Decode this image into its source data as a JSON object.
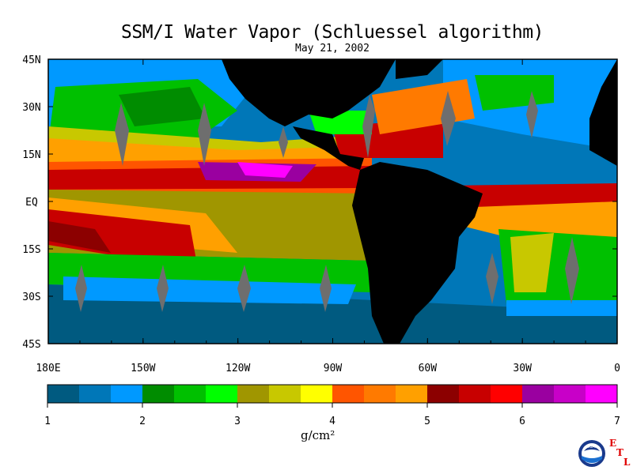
{
  "title": "SSM/I Water Vapor (Schluessel algorithm)",
  "date": "May 21, 2002",
  "lat_labels": [
    "45N",
    "30N",
    "15N",
    "EQ",
    "15S",
    "30S",
    "45S"
  ],
  "lat_values": [
    45,
    30,
    15,
    0,
    -15,
    -30,
    -45
  ],
  "lon_labels": [
    "180E",
    "150W",
    "120W",
    "90W",
    "60W",
    "30W",
    "0"
  ],
  "lon_values": [
    -180,
    -150,
    -120,
    -90,
    -60,
    -30,
    0
  ],
  "extent": {
    "lon": [
      -180,
      0
    ],
    "lat": [
      -45,
      45
    ]
  },
  "colorbar": {
    "range": [
      1,
      7
    ],
    "tick_labels": [
      "1",
      "2",
      "3",
      "4",
      "5",
      "6",
      "7"
    ],
    "tick_values": [
      1,
      2,
      3,
      4,
      5,
      6,
      7
    ],
    "colors": [
      "#005a80",
      "#0077b8",
      "#0099ff",
      "#008c00",
      "#00c000",
      "#00ff00",
      "#a09600",
      "#c8c800",
      "#ffff00",
      "#ff5500",
      "#ff7a00",
      "#ffa000",
      "#8c0000",
      "#c80000",
      "#ff0000",
      "#9a00a0",
      "#c800c8",
      "#ff00ff"
    ],
    "units": "g/cm²"
  },
  "logo": {
    "text": "NOAA",
    "lab_letters": [
      "E",
      "T",
      "L"
    ],
    "lab_color": "#e00000"
  }
}
